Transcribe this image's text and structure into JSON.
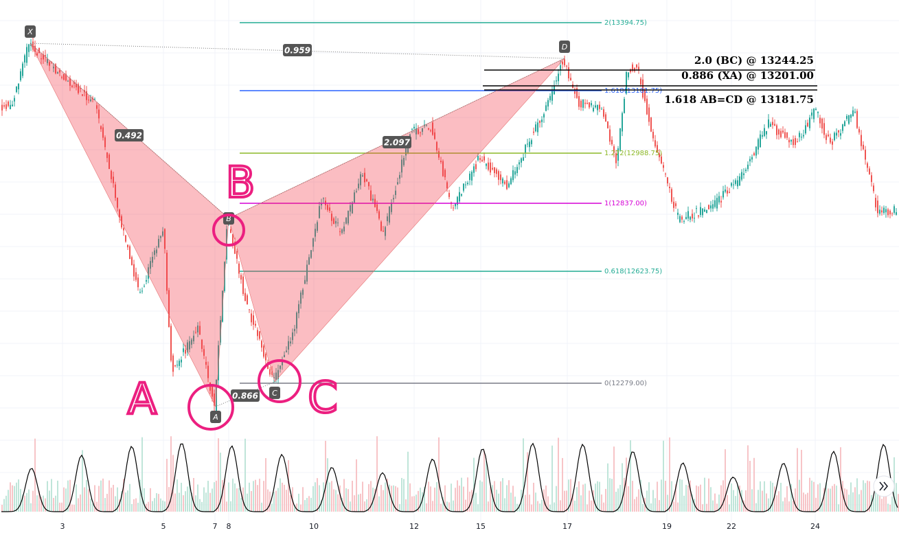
{
  "x_axis": {
    "labels": [
      "3",
      "5",
      "7",
      "8",
      "10",
      "12",
      "15",
      "17",
      "19",
      "22",
      "24"
    ]
  },
  "fib_levels": [
    "2(13394.75)",
    "1.618(13181.75)",
    "1.272(12988.75)",
    "1(12837.00)",
    "0.618(12623.75)",
    "0(12279.00)"
  ],
  "pattern": {
    "points": [
      "X",
      "A",
      "B",
      "C",
      "D"
    ],
    "ratios": [
      "0.959",
      "0.492",
      "2.097",
      "0.866"
    ]
  },
  "annotations": [
    "2.0 (BC) @ 13244.25",
    "0.886 (XA) @ 13201.00",
    "1.618 AB=CD @ 13181.75"
  ],
  "handwritten": [
    "A",
    "B",
    "C"
  ]
}
